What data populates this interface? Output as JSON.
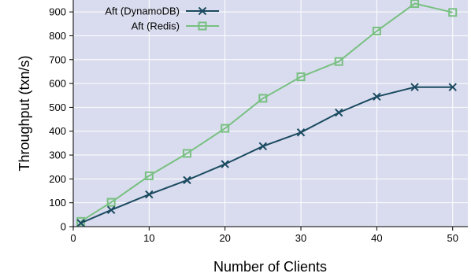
{
  "chart_data": {
    "type": "line",
    "title": "",
    "xlabel": "Number of Clients",
    "ylabel": "Throughput (txn/s)",
    "xlim": [
      0,
      52
    ],
    "ylim": [
      0,
      950
    ],
    "xticks": [
      0,
      10,
      20,
      30,
      40,
      50
    ],
    "yticks": [
      0,
      100,
      200,
      300,
      400,
      500,
      600,
      700,
      800,
      900
    ],
    "grid": true,
    "legend_position": "top-left",
    "plot_background": "#d9dcee",
    "series": [
      {
        "name": "Aft (DynamoDB)",
        "color": "#1a4a60",
        "marker": "x",
        "x": [
          1,
          5,
          10,
          15,
          20,
          25,
          30,
          35,
          40,
          45,
          50
        ],
        "y": [
          15,
          70,
          135,
          195,
          262,
          337,
          395,
          478,
          545,
          585,
          585
        ]
      },
      {
        "name": "Aft (Redis)",
        "color": "#78c081",
        "marker": "square",
        "x": [
          1,
          5,
          10,
          15,
          20,
          25,
          30,
          35,
          40,
          45,
          50
        ],
        "y": [
          22,
          102,
          213,
          307,
          412,
          538,
          628,
          692,
          820,
          935,
          898
        ]
      }
    ]
  }
}
